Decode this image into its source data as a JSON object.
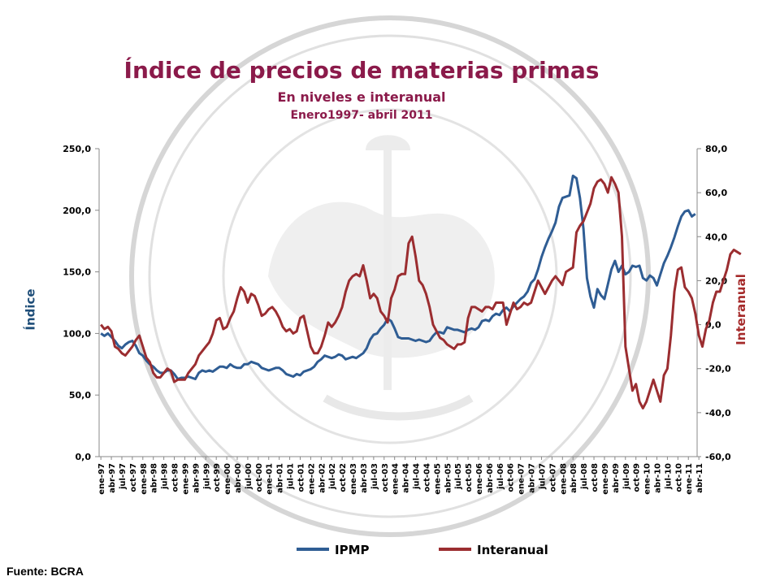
{
  "chart_data": {
    "type": "line",
    "title": "Índice de precios de materias primas",
    "subtitle": "En niveles e interanual",
    "period": "Enero1997- abril 2011",
    "ylabel_left": "Índice",
    "ylabel_right": "Interanual",
    "ylim_left": [
      0,
      250
    ],
    "ylim_right": [
      -60,
      80
    ],
    "yticks_left": [
      "0,0",
      "50,0",
      "100,0",
      "150,0",
      "200,0",
      "250,0"
    ],
    "yticks_right": [
      "-60,0",
      "-40,0",
      "-20,0",
      "0,0",
      "20,0",
      "40,0",
      "60,0",
      "80,0"
    ],
    "x_labels": [
      "ene-97",
      "abr-97",
      "jul-97",
      "oct-97",
      "ene-98",
      "abr-98",
      "jul-98",
      "oct-98",
      "ene-99",
      "abr-99",
      "jul-99",
      "oct-99",
      "ene-00",
      "abr-00",
      "jul-00",
      "oct-00",
      "ene-01",
      "abr-01",
      "jul-01",
      "oct-01",
      "ene-02",
      "abr-02",
      "jul-02",
      "oct-02",
      "ene-03",
      "abr-03",
      "jul-03",
      "oct-03",
      "ene-04",
      "abr-04",
      "jul-04",
      "oct-04",
      "ene-05",
      "abr-05",
      "jul-05",
      "oct-05",
      "ene-06",
      "abr-06",
      "jul-06",
      "oct-06",
      "ene-07",
      "abr-07",
      "jul-07",
      "oct-07",
      "ene-08",
      "abr-08",
      "jul-08",
      "oct-08",
      "ene-09",
      "abr-09",
      "jul-09",
      "oct-09",
      "ene-10",
      "abr-10",
      "jul-10",
      "oct-10",
      "ene-11",
      "abr-11"
    ],
    "grid": false,
    "legend_position": "bottom",
    "series": [
      {
        "name": "IPMP",
        "axis": "left",
        "color": "#2f5d94",
        "values": [
          100,
          98,
          100,
          97,
          94,
          90,
          88,
          91,
          93,
          94,
          90,
          84,
          82,
          78,
          75,
          73,
          70,
          68,
          68,
          70,
          70,
          67,
          63,
          64,
          64,
          65,
          64,
          63,
          68,
          70,
          69,
          70,
          69,
          71,
          73,
          73,
          72,
          75,
          73,
          72,
          72,
          75,
          75,
          77,
          76,
          75,
          72,
          71,
          70,
          71,
          72,
          72,
          70,
          67,
          66,
          65,
          67,
          66,
          69,
          70,
          71,
          73,
          77,
          79,
          82,
          81,
          80,
          81,
          83,
          82,
          79,
          80,
          81,
          80,
          82,
          84,
          88,
          95,
          99,
          100,
          104,
          107,
          112,
          110,
          104,
          97,
          96,
          96,
          96,
          95,
          94,
          95,
          94,
          93,
          94,
          98,
          101,
          101,
          100,
          105,
          104,
          103,
          103,
          102,
          101,
          103,
          104,
          103,
          105,
          110,
          111,
          110,
          114,
          116,
          115,
          119,
          121,
          118,
          122,
          125,
          128,
          130,
          134,
          141,
          144,
          152,
          162,
          170,
          177,
          183,
          190,
          203,
          210,
          211,
          212,
          228,
          226,
          210,
          185,
          145,
          130,
          121,
          136,
          131,
          128,
          140,
          152,
          159,
          150,
          155,
          148,
          150,
          155,
          154,
          155,
          145,
          143,
          147,
          145,
          139,
          148,
          157,
          163,
          170,
          178,
          187,
          195,
          199,
          200,
          195,
          197
        ]
      },
      {
        "name": "Interanual",
        "axis": "right",
        "color": "#9b2d30",
        "values": [
          0,
          -2,
          -1,
          -3,
          -10,
          -11,
          -13,
          -14,
          -12,
          -10,
          -7,
          -5,
          -10,
          -15,
          -17,
          -22,
          -24,
          -24,
          -22,
          -20,
          -21,
          -26,
          -25,
          -25,
          -25,
          -22,
          -20,
          -18,
          -14,
          -12,
          -10,
          -8,
          -4,
          2,
          3,
          -2,
          -1,
          3,
          6,
          12,
          17,
          15,
          10,
          14,
          13,
          9,
          4,
          5,
          7,
          8,
          6,
          3,
          -1,
          -3,
          -2,
          -4,
          -3,
          3,
          4,
          -3,
          -10,
          -13,
          -13,
          -10,
          -5,
          1,
          -1,
          1,
          4,
          8,
          15,
          20,
          22,
          23,
          22,
          27,
          20,
          12,
          14,
          12,
          6,
          4,
          1,
          12,
          16,
          22,
          23,
          23,
          37,
          40,
          31,
          20,
          18,
          14,
          8,
          0,
          -3,
          -6,
          -7,
          -9,
          -10,
          -11,
          -9,
          -9,
          -8,
          3,
          8,
          8,
          7,
          6,
          8,
          8,
          7,
          10,
          10,
          10,
          0,
          5,
          10,
          7,
          8,
          10,
          9,
          10,
          15,
          20,
          17,
          14,
          17,
          20,
          22,
          20,
          18,
          24,
          25,
          26,
          42,
          45,
          47,
          51,
          55,
          62,
          65,
          66,
          64,
          60,
          67,
          64,
          60,
          40,
          -10,
          -20,
          -30,
          -27,
          -35,
          -38,
          -35,
          -30,
          -25,
          -30,
          -35,
          -23,
          -20,
          -5,
          15,
          25,
          26,
          17,
          15,
          12,
          5,
          -5,
          -10,
          -2,
          2,
          10,
          15,
          15,
          20,
          25,
          32,
          34,
          33,
          32
        ]
      }
    ]
  },
  "legend": {
    "ipmp_label": "IPMP",
    "interanual_label": "Interanual"
  },
  "source": "Fuente: BCRA"
}
